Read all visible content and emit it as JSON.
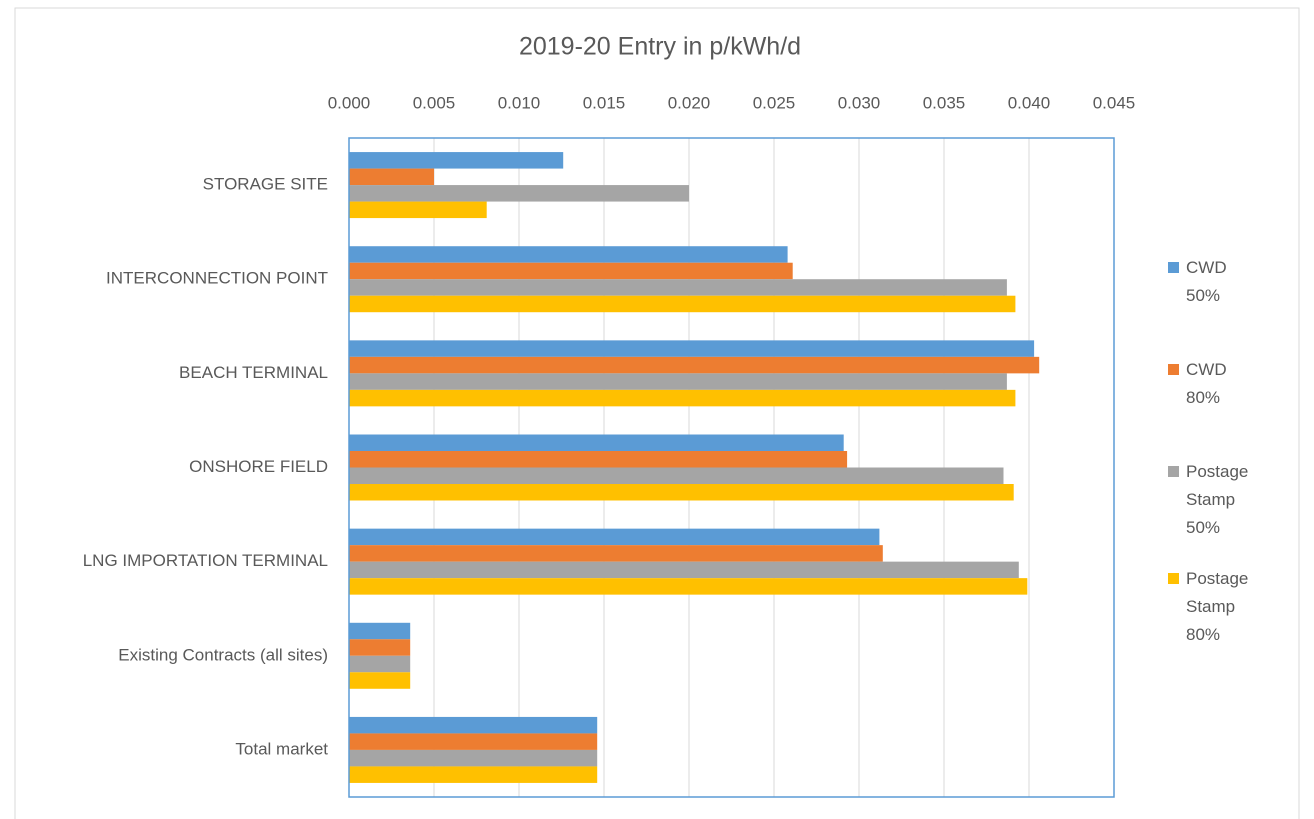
{
  "chart_data": {
    "type": "bar",
    "horizontal": true,
    "title": "2019-20 Entry in p/kWh/d",
    "categories": [
      "STORAGE SITE",
      "INTERCONNECTION POINT",
      "BEACH TERMINAL",
      "ONSHORE FIELD",
      "LNG IMPORTATION TERMINAL",
      "Existing Contracts (all sites)",
      "Total market"
    ],
    "series": [
      {
        "name": "CWD 50%",
        "color": "#5b9bd5",
        "values": [
          0.0126,
          0.0258,
          0.0403,
          0.0291,
          0.0312,
          0.0036,
          0.0146
        ]
      },
      {
        "name": "CWD 80%",
        "color": "#ed7d31",
        "values": [
          0.005,
          0.0261,
          0.0406,
          0.0293,
          0.0314,
          0.0036,
          0.0146
        ]
      },
      {
        "name": "Postage Stamp 50%",
        "color": "#a5a5a5",
        "values": [
          0.02,
          0.0387,
          0.0387,
          0.0385,
          0.0394,
          0.0036,
          0.0146
        ]
      },
      {
        "name": "Postage Stamp 80%",
        "color": "#ffc000",
        "values": [
          0.0081,
          0.0392,
          0.0392,
          0.0391,
          0.0399,
          0.0036,
          0.0146
        ]
      }
    ],
    "xlim": [
      0,
      0.045
    ],
    "xticks": [
      {
        "value": 0,
        "label": "0.000"
      },
      {
        "value": 0.005,
        "label": "0.005"
      },
      {
        "value": 0.01,
        "label": "0.010"
      },
      {
        "value": 0.015,
        "label": "0.015"
      },
      {
        "value": 0.02,
        "label": "0.020"
      },
      {
        "value": 0.025,
        "label": "0.025"
      },
      {
        "value": 0.03,
        "label": "0.030"
      },
      {
        "value": 0.035,
        "label": "0.035"
      },
      {
        "value": 0.04,
        "label": "0.040"
      },
      {
        "value": 0.045,
        "label": "0.045"
      }
    ],
    "grid": true,
    "legend": "right"
  }
}
